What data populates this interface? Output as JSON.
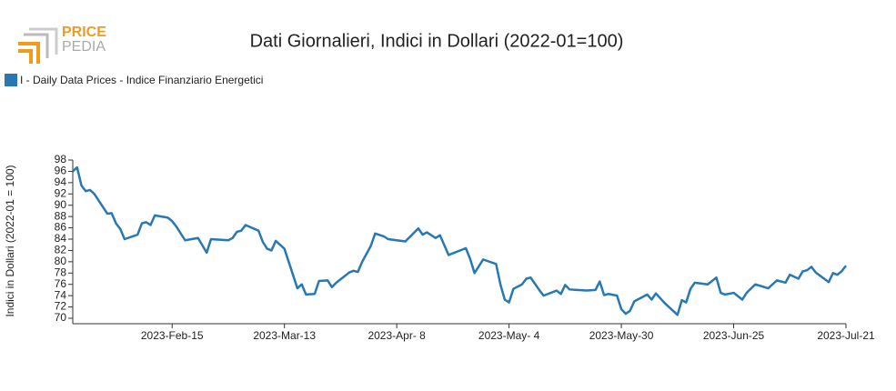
{
  "logo": {
    "top": "PRICE",
    "bottom": "PEDIA"
  },
  "chart_data": {
    "type": "line",
    "title": "Dati Giornalieri, Indici in Dollari (2022-01=100)",
    "ylabel": "Indici in Dollari (2022-01 = 100)",
    "xlim": [
      "2023-01-23",
      "2023-07-21"
    ],
    "xticks": [
      {
        "value": "2023-02-15",
        "label": "2023-Feb-15"
      },
      {
        "value": "2023-03-13",
        "label": "2023-Mar-13"
      },
      {
        "value": "2023-04-08",
        "label": "2023-Apr- 8"
      },
      {
        "value": "2023-05-04",
        "label": "2023-May- 4"
      },
      {
        "value": "2023-05-30",
        "label": "2023-May-30"
      },
      {
        "value": "2023-06-25",
        "label": "2023-Jun-25"
      },
      {
        "value": "2023-07-21",
        "label": "2023-Jul-21"
      }
    ],
    "ylim": [
      70,
      98
    ],
    "yticks": [
      70,
      72,
      74,
      76,
      78,
      80,
      82,
      84,
      86,
      88,
      90,
      92,
      94,
      96,
      98
    ],
    "x": [
      "2023-01-23",
      "2023-01-24",
      "2023-01-25",
      "2023-01-26",
      "2023-01-27",
      "2023-01-28",
      "2023-01-31",
      "2023-02-01",
      "2023-02-02",
      "2023-02-03",
      "2023-02-04",
      "2023-02-07",
      "2023-02-08",
      "2023-02-09",
      "2023-02-10",
      "2023-02-11",
      "2023-02-14",
      "2023-02-15",
      "2023-02-16",
      "2023-02-18",
      "2023-02-21",
      "2023-02-23",
      "2023-02-24",
      "2023-02-26",
      "2023-02-28",
      "2023-03-01",
      "2023-03-02",
      "2023-03-03",
      "2023-03-04",
      "2023-03-07",
      "2023-03-08",
      "2023-03-09",
      "2023-03-10",
      "2023-03-11",
      "2023-03-13",
      "2023-03-16",
      "2023-03-17",
      "2023-03-18",
      "2023-03-20",
      "2023-03-21",
      "2023-03-23",
      "2023-03-24",
      "2023-03-25",
      "2023-03-28",
      "2023-03-29",
      "2023-03-30",
      "2023-03-31",
      "2023-04-02",
      "2023-04-03",
      "2023-04-05",
      "2023-04-06",
      "2023-04-10",
      "2023-04-13",
      "2023-04-14",
      "2023-04-15",
      "2023-04-17",
      "2023-04-18",
      "2023-04-20",
      "2023-04-24",
      "2023-04-25",
      "2023-04-26",
      "2023-04-28",
      "2023-05-01",
      "2023-05-02",
      "2023-05-03",
      "2023-05-04",
      "2023-05-05",
      "2023-05-07",
      "2023-05-08",
      "2023-05-09",
      "2023-05-11",
      "2023-05-12",
      "2023-05-15",
      "2023-05-16",
      "2023-05-17",
      "2023-05-18",
      "2023-05-22",
      "2023-05-24",
      "2023-05-25",
      "2023-05-26",
      "2023-05-27",
      "2023-05-29",
      "2023-05-30",
      "2023-05-31",
      "2023-06-01",
      "2023-06-02",
      "2023-06-05",
      "2023-06-06",
      "2023-06-07",
      "2023-06-09",
      "2023-06-12",
      "2023-06-13",
      "2023-06-14",
      "2023-06-15",
      "2023-06-16",
      "2023-06-19",
      "2023-06-21",
      "2023-06-22",
      "2023-06-23",
      "2023-06-25",
      "2023-06-27",
      "2023-06-28",
      "2023-06-30",
      "2023-07-03",
      "2023-07-05",
      "2023-07-07",
      "2023-07-08",
      "2023-07-10",
      "2023-07-11",
      "2023-07-12",
      "2023-07-13",
      "2023-07-14",
      "2023-07-17",
      "2023-07-18",
      "2023-07-19",
      "2023-07-20",
      "2023-07-21"
    ],
    "series": [
      {
        "name": "I - Daily Data Prices - Indice Finanziario Energetici",
        "color": "#2878b4",
        "values": [
          96.0,
          96.7,
          93.5,
          92.5,
          92.7,
          92.0,
          88.5,
          88.6,
          86.8,
          85.8,
          84.0,
          84.8,
          86.8,
          87.0,
          86.5,
          88.2,
          87.8,
          87.2,
          86.2,
          83.8,
          84.2,
          81.6,
          84.0,
          83.9,
          83.8,
          84.2,
          85.3,
          85.5,
          86.5,
          85.5,
          83.5,
          82.3,
          82.0,
          83.7,
          82.3,
          75.3,
          76.0,
          74.2,
          74.3,
          76.6,
          76.7,
          75.5,
          76.3,
          78.1,
          78.4,
          78.2,
          80.0,
          82.8,
          85.0,
          84.5,
          84.0,
          83.6,
          85.9,
          84.8,
          85.2,
          84.2,
          84.7,
          81.2,
          82.4,
          80.5,
          78.0,
          80.4,
          79.6,
          76.0,
          73.3,
          72.8,
          75.2,
          76.0,
          77.0,
          77.2,
          75.0,
          74.0,
          74.9,
          74.3,
          75.9,
          75.1,
          74.9,
          75.0,
          76.5,
          74.1,
          74.3,
          74.0,
          71.6,
          70.8,
          71.3,
          73.0,
          74.2,
          73.3,
          74.4,
          72.7,
          70.6,
          73.2,
          72.8,
          75.2,
          76.3,
          76.0,
          77.2,
          74.5,
          74.2,
          74.5,
          73.3,
          74.5,
          76.0,
          75.3,
          76.7,
          76.3,
          77.7,
          77.0,
          78.3,
          78.5,
          79.1,
          78.1,
          76.4,
          78.0,
          77.7,
          78.3,
          79.3
        ]
      }
    ]
  }
}
